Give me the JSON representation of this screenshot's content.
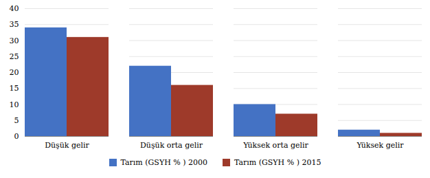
{
  "chart_data": {
    "type": "bar",
    "categories": [
      "Düşük gelir",
      "Düşük orta gelir",
      "Yüksek orta gelir",
      "Yüksek gelir"
    ],
    "series": [
      {
        "name": "Tarım (GSYH % ) 2000",
        "color": "#4472C4",
        "values": [
          34,
          22,
          10,
          2
        ]
      },
      {
        "name": "Tarım (GSYH % ) 2015",
        "color": "#9E3A2A",
        "values": [
          31,
          16,
          7,
          1
        ]
      }
    ],
    "ylim": [
      0,
      40
    ],
    "yticks": [
      0,
      5,
      10,
      15,
      20,
      25,
      30,
      35,
      40
    ],
    "grid": true,
    "legend": "bottom"
  }
}
